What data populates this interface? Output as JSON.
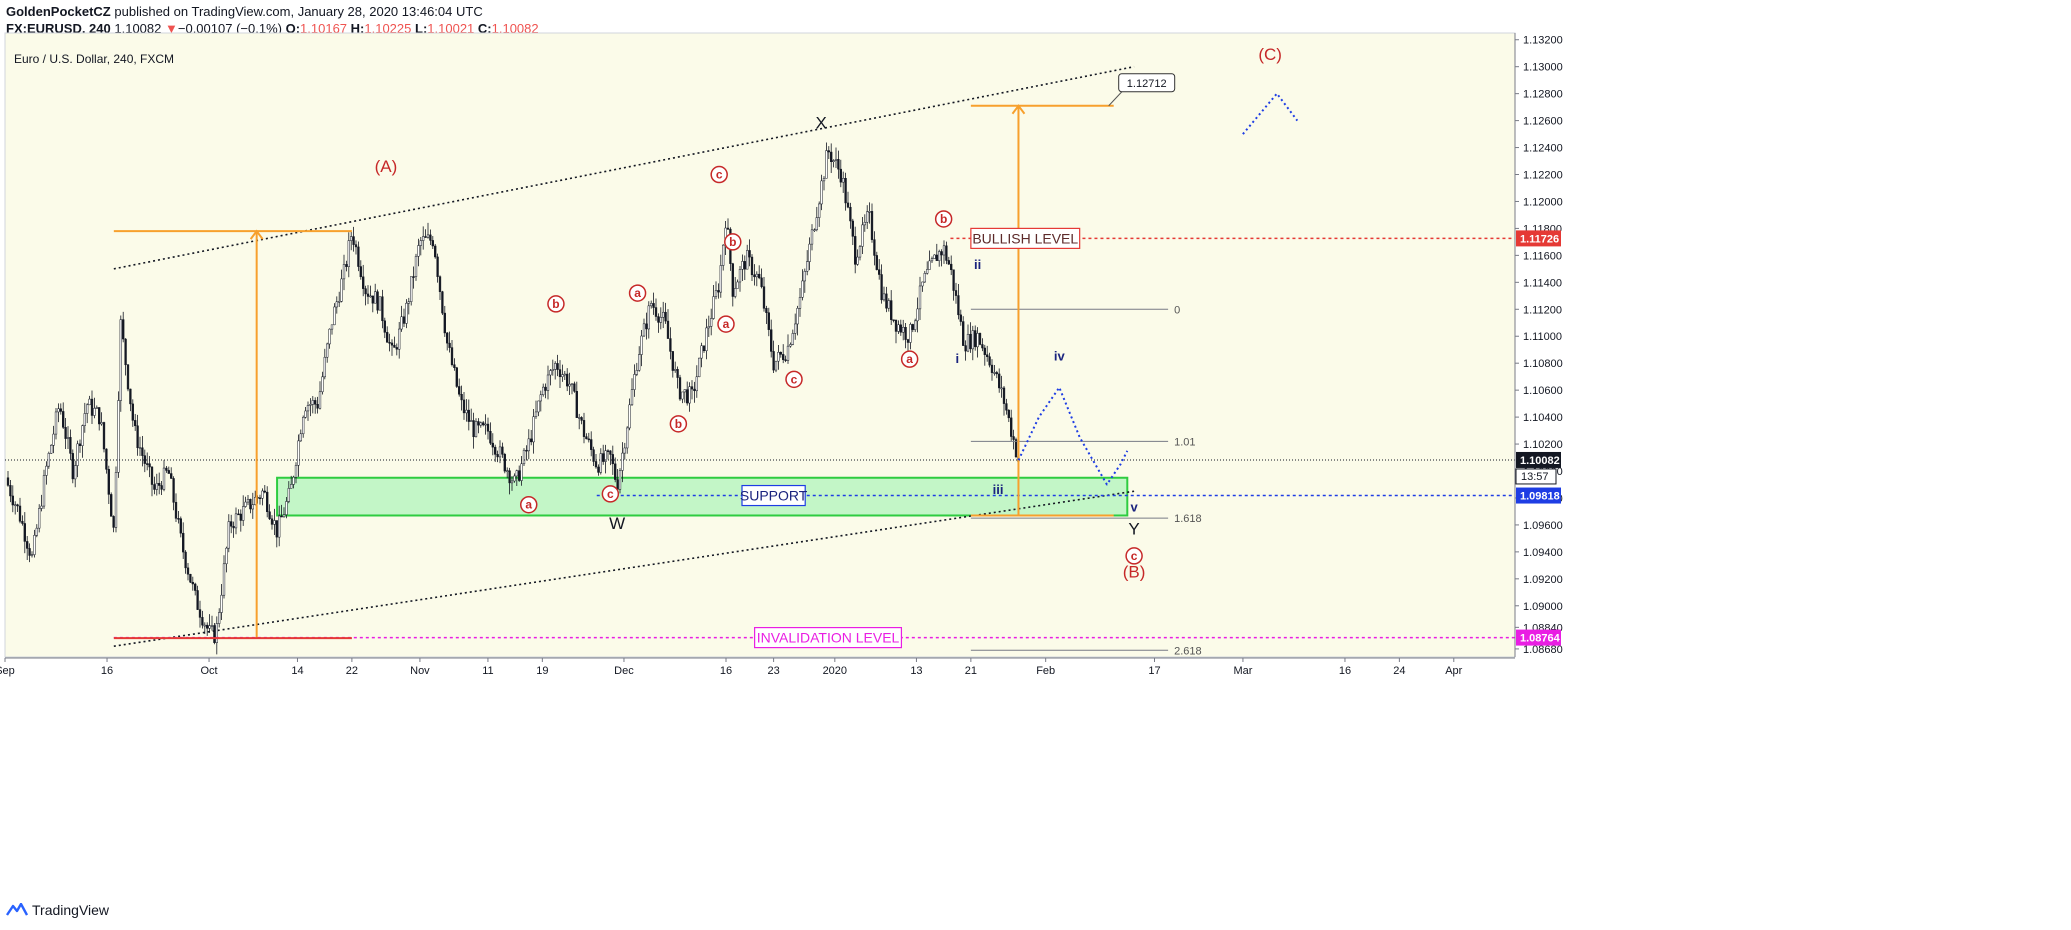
{
  "header": {
    "author": "GoldenPocketCZ",
    "published_text": "published on TradingView.com, January 28, 2020 13:46:04 UTC",
    "symbol": "FX:EURUSD, 240",
    "last": "1.10082",
    "change_arrow": "▼",
    "change": "−0.00107 (−0.1%)",
    "o_label": "O:",
    "o_value": "1.10167",
    "h_label": "H:",
    "h_value": "1.10225",
    "l_label": "L:",
    "l_value": "1.10021",
    "c_label": "C:",
    "c_value": "1.10082"
  },
  "brand": {
    "name": "TradingView",
    "logo_icon": "tradingview-logo-icon"
  },
  "colors": {
    "plot_bg": "#fbfbe9",
    "candles": "#131722",
    "wave_red": "#c62828",
    "wave_blue": "#1a237e",
    "orange": "#f7a02d",
    "support_fill": "#b9f5c1",
    "support_border": "#2ecc40",
    "bullish": "#e53935",
    "invalidation": "#e91ee3",
    "support_line": "#1e3de4"
  },
  "chart_data": {
    "type": "candlestick",
    "title": "Euro / U.S. Dollar, 240, FXCM",
    "x_range": [
      "2019-09-01",
      "2020-04-10"
    ],
    "y_range": [
      1.0862,
      1.1325
    ],
    "y_axis_side": "right",
    "y_ticks": [
      "1.13200",
      "1.13000",
      "1.12800",
      "1.12600",
      "1.12400",
      "1.12200",
      "1.12000",
      "1.11800",
      "1.11600",
      "1.11400",
      "1.11200",
      "1.11000",
      "1.10800",
      "1.10600",
      "1.10400",
      "1.10200",
      "1.10000",
      "1.09800",
      "1.09600",
      "1.09400",
      "1.09200",
      "1.09000",
      "1.08840",
      "1.08680"
    ],
    "x_ticks": [
      {
        "label": "Sep",
        "date": "2019-09-01"
      },
      {
        "label": "16",
        "date": "2019-09-16"
      },
      {
        "label": "Oct",
        "date": "2019-10-01"
      },
      {
        "label": "14",
        "date": "2019-10-14"
      },
      {
        "label": "22",
        "date": "2019-10-22"
      },
      {
        "label": "Nov",
        "date": "2019-11-01"
      },
      {
        "label": "11",
        "date": "2019-11-11"
      },
      {
        "label": "19",
        "date": "2019-11-19"
      },
      {
        "label": "Dec",
        "date": "2019-12-01"
      },
      {
        "label": "16",
        "date": "2019-12-16"
      },
      {
        "label": "23",
        "date": "2019-12-23"
      },
      {
        "label": "2020",
        "date": "2020-01-01"
      },
      {
        "label": "13",
        "date": "2020-01-13"
      },
      {
        "label": "21",
        "date": "2020-01-21"
      },
      {
        "label": "Feb",
        "date": "2020-02-01"
      },
      {
        "label": "17",
        "date": "2020-02-17"
      },
      {
        "label": "Mar",
        "date": "2020-03-01"
      },
      {
        "label": "16",
        "date": "2020-03-16"
      },
      {
        "label": "24",
        "date": "2020-03-24"
      },
      {
        "label": "Apr",
        "date": "2020-04-01"
      }
    ],
    "price_path": [
      [
        "2019-09-01",
        1.0995
      ],
      [
        "2019-09-03",
        1.097
      ],
      [
        "2019-09-05",
        1.0935
      ],
      [
        "2019-09-07",
        1.1
      ],
      [
        "2019-09-09",
        1.105
      ],
      [
        "2019-09-11",
        1.1
      ],
      [
        "2019-09-13",
        1.105
      ],
      [
        "2019-09-15",
        1.104
      ],
      [
        "2019-09-17",
        1.0955
      ],
      [
        "2019-09-18",
        1.111
      ],
      [
        "2019-09-20",
        1.103
      ],
      [
        "2019-09-23",
        1.0985
      ],
      [
        "2019-09-25",
        1.1
      ],
      [
        "2019-09-27",
        1.0945
      ],
      [
        "2019-09-29",
        1.0905
      ],
      [
        "2019-10-01",
        1.088
      ],
      [
        "2019-10-02",
        1.0878
      ],
      [
        "2019-10-04",
        1.096
      ],
      [
        "2019-10-07",
        1.0975
      ],
      [
        "2019-10-09",
        1.0985
      ],
      [
        "2019-10-11",
        1.0955
      ],
      [
        "2019-10-13",
        1.0985
      ],
      [
        "2019-10-15",
        1.105
      ],
      [
        "2019-10-17",
        1.105
      ],
      [
        "2019-10-19",
        1.111
      ],
      [
        "2019-10-21",
        1.115
      ],
      [
        "2019-10-22",
        1.1178
      ],
      [
        "2019-10-24",
        1.1135
      ],
      [
        "2019-10-26",
        1.1125
      ],
      [
        "2019-10-28",
        1.1085
      ],
      [
        "2019-10-30",
        1.112
      ],
      [
        "2019-11-01",
        1.117
      ],
      [
        "2019-11-03",
        1.1172
      ],
      [
        "2019-11-05",
        1.1095
      ],
      [
        "2019-11-07",
        1.105
      ],
      [
        "2019-11-09",
        1.103
      ],
      [
        "2019-11-11",
        1.103
      ],
      [
        "2019-11-13",
        1.101
      ],
      [
        "2019-11-15",
        1.099
      ],
      [
        "2019-11-17",
        1.102
      ],
      [
        "2019-11-19",
        1.106
      ],
      [
        "2019-11-21",
        1.108
      ],
      [
        "2019-11-23",
        1.1065
      ],
      [
        "2019-11-25",
        1.103
      ],
      [
        "2019-11-27",
        1.1005
      ],
      [
        "2019-11-29",
        1.101
      ],
      [
        "2019-11-30",
        1.099
      ],
      [
        "2019-12-01",
        1.102
      ],
      [
        "2019-12-03",
        1.1085
      ],
      [
        "2019-12-05",
        1.1125
      ],
      [
        "2019-12-07",
        1.111
      ],
      [
        "2019-12-09",
        1.106
      ],
      [
        "2019-12-11",
        1.1055
      ],
      [
        "2019-12-13",
        1.11
      ],
      [
        "2019-12-15",
        1.114
      ],
      [
        "2019-12-16",
        1.119
      ],
      [
        "2019-12-17",
        1.1135
      ],
      [
        "2019-12-19",
        1.1158
      ],
      [
        "2019-12-21",
        1.114
      ],
      [
        "2019-12-23",
        1.108
      ],
      [
        "2019-12-25",
        1.109
      ],
      [
        "2019-12-27",
        1.113
      ],
      [
        "2019-12-29",
        1.1185
      ],
      [
        "2019-12-31",
        1.1238
      ],
      [
        "2020-01-02",
        1.122
      ],
      [
        "2020-01-04",
        1.116
      ],
      [
        "2020-01-06",
        1.119
      ],
      [
        "2020-01-08",
        1.113
      ],
      [
        "2020-01-10",
        1.111
      ],
      [
        "2020-01-12",
        1.11
      ],
      [
        "2020-01-14",
        1.114
      ],
      [
        "2020-01-16",
        1.116
      ],
      [
        "2020-01-17",
        1.1165
      ],
      [
        "2020-01-18",
        1.115
      ],
      [
        "2020-01-20",
        1.1095
      ],
      [
        "2020-01-22",
        1.11
      ],
      [
        "2020-01-24",
        1.108
      ],
      [
        "2020-01-26",
        1.105
      ],
      [
        "2020-01-28",
        1.1008
      ]
    ],
    "projections": [
      {
        "color": "blue",
        "points": [
          [
            "2020-01-28",
            1.1008
          ],
          [
            "2020-01-31",
            1.104
          ],
          [
            "2020-02-03",
            1.1062
          ],
          [
            "2020-02-06",
            1.1025
          ],
          [
            "2020-02-10",
            1.099
          ],
          [
            "2020-02-12",
            1.1005
          ],
          [
            "2020-02-13",
            1.1015
          ]
        ]
      },
      {
        "color": "blue",
        "points": [
          [
            "2020-03-01",
            1.125
          ],
          [
            "2020-03-06",
            1.128
          ],
          [
            "2020-03-09",
            1.126
          ]
        ]
      }
    ],
    "horizontal_levels": [
      {
        "label": "BULLISH LEVEL",
        "price": 1.11726,
        "tag": "1.11726"
      },
      {
        "label": "SUPPORT",
        "price": 1.09818,
        "tag": "1.09818"
      },
      {
        "label": "INVALIDATION LEVEL",
        "price": 1.08764,
        "tag": "1.08764"
      },
      {
        "label": "last",
        "price": 1.10082,
        "tag": "1.10082",
        "countdown": "13:57"
      }
    ],
    "support_zone": {
      "label": "SUPPORT",
      "x": [
        "2019-10-11",
        "2020-02-13"
      ],
      "y": [
        1.0967,
        1.0995
      ]
    },
    "trend_channel": {
      "upper": [
        [
          "2019-09-17",
          1.115
        ],
        [
          "2020-02-14",
          1.13
        ]
      ],
      "lower": [
        [
          "2019-09-17",
          1.087
        ],
        [
          "2020-02-14",
          1.0985
        ]
      ]
    },
    "price_target_box": "1.12712",
    "measured_moves": [
      {
        "x": "2019-10-08",
        "from": 1.0876,
        "to": 1.1178
      },
      {
        "x": "2020-01-28",
        "from": 1.0967,
        "to": 1.1271
      }
    ],
    "fib_levels": [
      {
        "label": "0",
        "price": 1.112
      },
      {
        "label": "1.01",
        "price": 1.1022
      },
      {
        "label": "1.618",
        "price": 1.0965
      },
      {
        "label": "2.618",
        "price": 1.0867
      }
    ],
    "annotations": [
      {
        "text": "(A)",
        "style": "red-paren",
        "x": "2019-10-27",
        "y": 1.1222
      },
      {
        "text": "(B)",
        "style": "red-paren",
        "x": "2020-02-14",
        "y": 1.0921
      },
      {
        "text": "(C)",
        "style": "red-paren",
        "x": "2020-03-05",
        "y": 1.1305
      },
      {
        "text": "X",
        "style": "black",
        "x": "2019-12-30",
        "y": 1.1254
      },
      {
        "text": "W",
        "style": "black",
        "x": "2019-11-30",
        "y": 1.0957
      },
      {
        "text": "Y",
        "style": "black",
        "x": "2020-02-14",
        "y": 1.0953
      },
      {
        "text": "a",
        "style": "circle",
        "x": "2019-11-17",
        "y": 1.0975
      },
      {
        "text": "b",
        "style": "circle",
        "x": "2019-11-21",
        "y": 1.1124
      },
      {
        "text": "c",
        "style": "circle",
        "x": "2019-11-29",
        "y": 1.0983
      },
      {
        "text": "a",
        "style": "circle",
        "x": "2019-12-03",
        "y": 1.1132
      },
      {
        "text": "b",
        "style": "circle",
        "x": "2019-12-09",
        "y": 1.1035
      },
      {
        "text": "c",
        "style": "circle",
        "x": "2019-12-15",
        "y": 1.122
      },
      {
        "text": "b",
        "style": "circle",
        "x": "2019-12-17",
        "y": 1.117
      },
      {
        "text": "a",
        "style": "circle",
        "x": "2019-12-16",
        "y": 1.1109
      },
      {
        "text": "c",
        "style": "circle",
        "x": "2019-12-26",
        "y": 1.1068
      },
      {
        "text": "a",
        "style": "circle",
        "x": "2020-01-12",
        "y": 1.1083
      },
      {
        "text": "b",
        "style": "circle",
        "x": "2020-01-17",
        "y": 1.1187
      },
      {
        "text": "c",
        "style": "circle",
        "x": "2020-02-14",
        "y": 1.0937
      },
      {
        "text": "ii",
        "style": "blue",
        "x": "2020-01-22",
        "y": 1.115
      },
      {
        "text": "i",
        "style": "blue",
        "x": "2020-01-19",
        "y": 1.108
      },
      {
        "text": "iii",
        "style": "blue",
        "x": "2020-01-25",
        "y": 1.0983
      },
      {
        "text": "iv",
        "style": "blue",
        "x": "2020-02-03",
        "y": 1.1082
      },
      {
        "text": "v",
        "style": "blue",
        "x": "2020-02-14",
        "y": 1.097
      }
    ]
  }
}
